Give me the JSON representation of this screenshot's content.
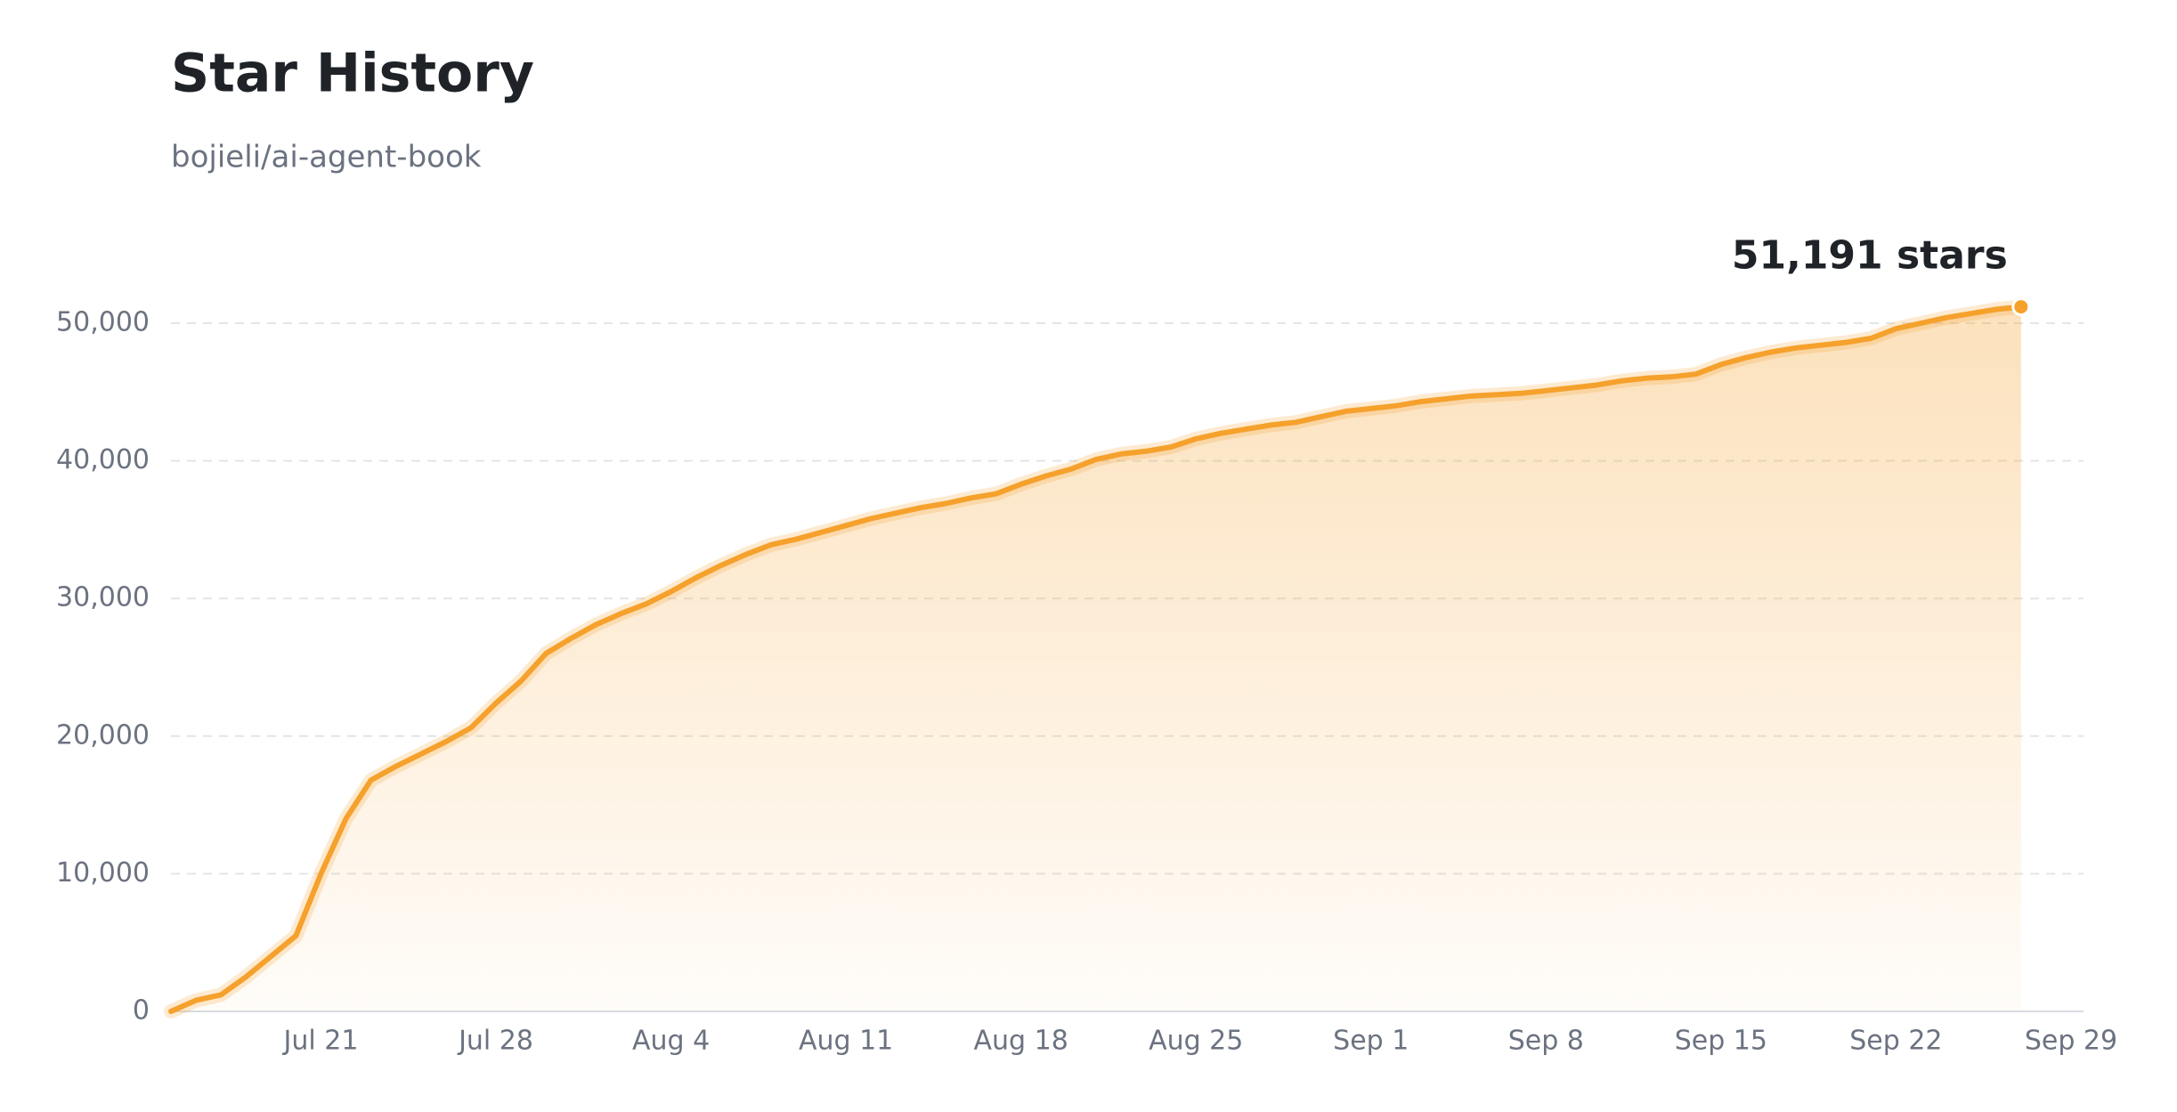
{
  "chart_data": {
    "type": "area",
    "title": "Star History",
    "subtitle": "bojieli/ai-agent-book",
    "annotation": "51,191 stars",
    "color": "#f5a12c",
    "x": [
      196,
      197,
      198,
      199,
      200,
      201,
      202,
      203,
      204,
      205,
      206,
      207,
      208,
      209,
      210,
      211,
      212,
      213,
      214,
      215,
      216,
      217,
      218,
      219,
      220,
      221,
      222,
      223,
      224,
      225,
      226,
      227,
      228,
      229,
      230,
      231,
      232,
      233,
      234,
      235,
      236,
      237,
      238,
      239,
      240,
      241,
      242,
      243,
      244,
      245,
      246,
      247,
      248,
      249,
      250,
      251,
      252,
      253,
      254,
      255,
      256,
      257,
      258,
      259,
      260,
      261,
      262,
      263,
      264,
      265,
      266,
      267,
      268,
      269,
      270
    ],
    "values": [
      0,
      800,
      1200,
      2500,
      4000,
      5500,
      10000,
      14000,
      16800,
      17800,
      18700,
      19600,
      20600,
      22400,
      24000,
      26000,
      27100,
      28100,
      28900,
      29600,
      30500,
      31500,
      32400,
      33200,
      33900,
      34300,
      34800,
      35300,
      35800,
      36200,
      36600,
      36900,
      37300,
      37600,
      38300,
      38900,
      39400,
      40100,
      40500,
      40700,
      41000,
      41600,
      42000,
      42300,
      42600,
      42800,
      43200,
      43600,
      43800,
      44000,
      44300,
      44500,
      44700,
      44800,
      44900,
      45100,
      45300,
      45500,
      45800,
      46000,
      46100,
      46300,
      47000,
      47500,
      47900,
      48200,
      48400,
      48600,
      48900,
      49600,
      50000,
      50400,
      50700,
      51000,
      51191
    ],
    "xlim": [
      196,
      272.5
    ],
    "xticks": [
      {
        "value": 202,
        "label": "Jul 21"
      },
      {
        "value": 209,
        "label": "Jul 28"
      },
      {
        "value": 216,
        "label": "Aug 4"
      },
      {
        "value": 223,
        "label": "Aug 11"
      },
      {
        "value": 230,
        "label": "Aug 18"
      },
      {
        "value": 237,
        "label": "Aug 25"
      },
      {
        "value": 244,
        "label": "Sep 1"
      },
      {
        "value": 251,
        "label": "Sep 8"
      },
      {
        "value": 258,
        "label": "Sep 15"
      },
      {
        "value": 265,
        "label": "Sep 22"
      },
      {
        "value": 272,
        "label": "Sep 29"
      }
    ],
    "ylim": [
      0,
      50000
    ],
    "yticks": [
      0,
      {
        "value": 10000,
        "label": "10,000"
      },
      {
        "value": 20000,
        "label": "20,000"
      },
      {
        "value": 30000,
        "label": "30,000"
      },
      {
        "value": 40000,
        "label": "40,000"
      },
      {
        "value": 50000,
        "label": "50,000"
      }
    ],
    "grid": true
  }
}
